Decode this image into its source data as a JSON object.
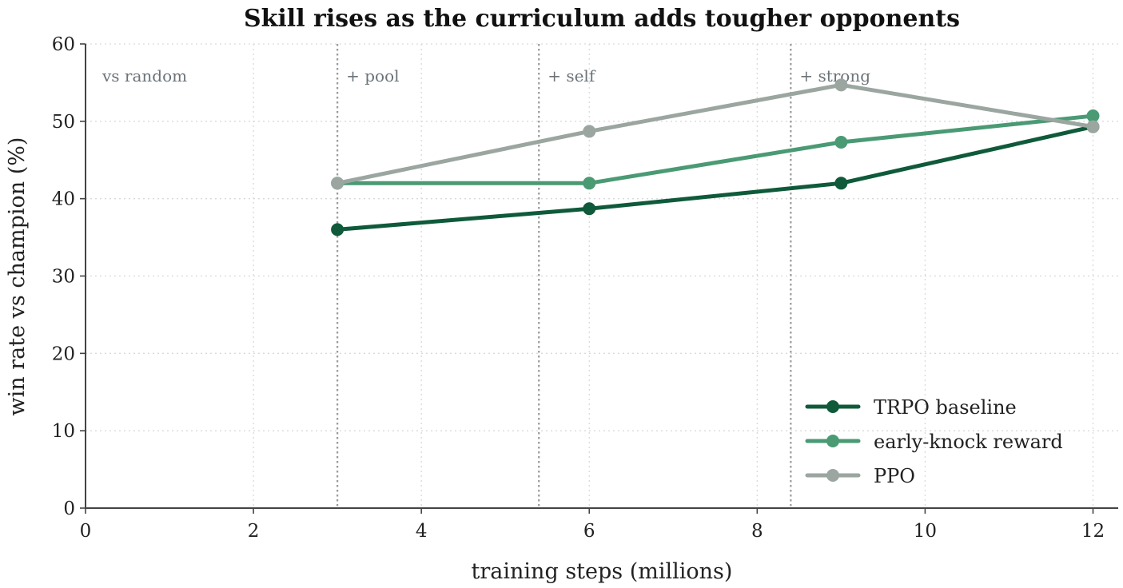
{
  "chart_data": {
    "type": "line",
    "title": "Skill rises as the curriculum adds tougher opponents",
    "xlabel": "training steps (millions)",
    "ylabel": "win rate vs champion (%)",
    "xlim": [
      0,
      12.3
    ],
    "ylim": [
      0,
      60
    ],
    "xticks": [
      0,
      2,
      4,
      6,
      8,
      10,
      12
    ],
    "xtick_labels": [
      "0",
      "2",
      "4",
      "6",
      "8",
      "10",
      "12"
    ],
    "yticks": [
      0,
      10,
      20,
      30,
      40,
      50,
      60
    ],
    "ytick_labels": [
      "0",
      "10",
      "20",
      "30",
      "40",
      "50",
      "60"
    ],
    "grid": true,
    "legend_position": "bottom-right",
    "x": [
      3,
      6,
      9,
      12
    ],
    "series": [
      {
        "name": "TRPO baseline",
        "color": "#0f5a3a",
        "values": [
          36.0,
          38.7,
          42.0,
          49.3
        ]
      },
      {
        "name": "early-knock reward",
        "color": "#4a9a74",
        "values": [
          42.0,
          42.0,
          47.3,
          50.7
        ]
      },
      {
        "name": "PPO",
        "color": "#9ba6a0",
        "values": [
          42.0,
          48.7,
          54.7,
          49.3
        ]
      }
    ],
    "phases": [
      {
        "label": "vs random",
        "start": 0
      },
      {
        "label": "+ pool",
        "start": 3
      },
      {
        "label": "+ self",
        "start": 5.4
      },
      {
        "label": "+ strong",
        "start": 8.4
      }
    ]
  }
}
